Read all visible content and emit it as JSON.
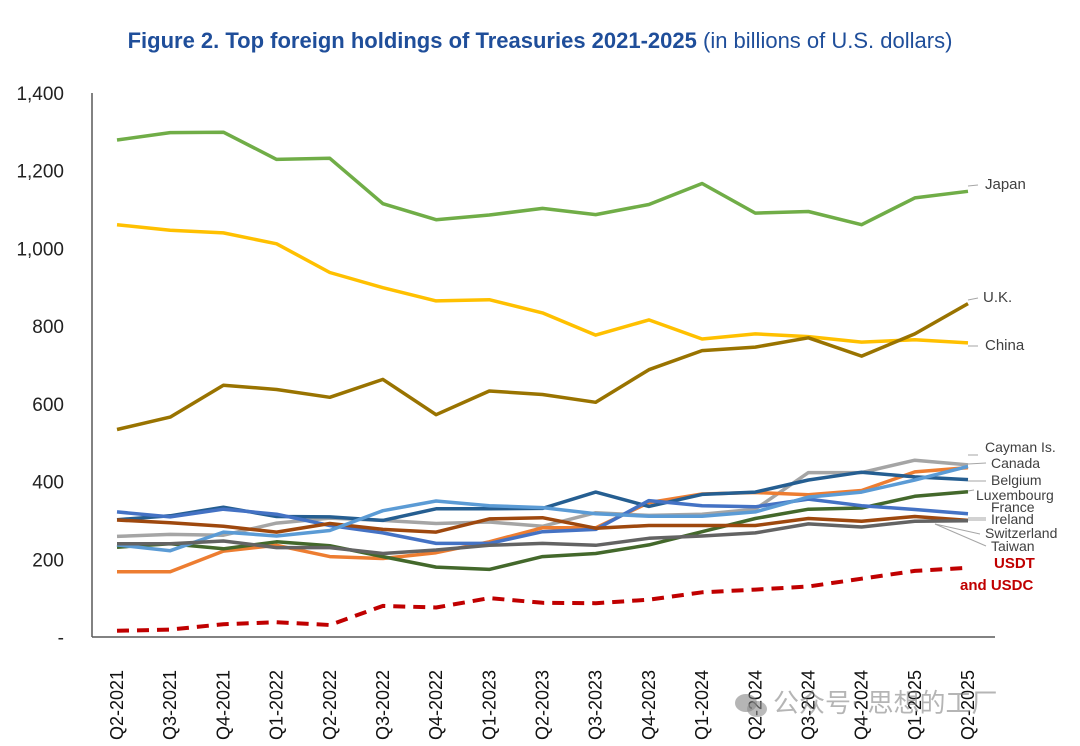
{
  "title": {
    "bold": "Figure 2. Top foreign holdings of Treasuries 2021-2025",
    "light": " (in billions of U.S. dollars)"
  },
  "watermark": {
    "icon": "wechat-icon",
    "text": "公众号· 思想的工厂"
  },
  "chart_data": {
    "type": "line",
    "title": "Figure 2. Top foreign holdings of Treasuries 2021-2025 (in billions of U.S. dollars)",
    "xlabel": "",
    "ylabel": "",
    "ylim": [
      0,
      1400
    ],
    "yticks": [
      0,
      200,
      400,
      600,
      800,
      1000,
      1200,
      1400
    ],
    "ytick_labels": [
      "-",
      "200",
      "400",
      "600",
      "800",
      "1,000",
      "1,200",
      "1,400"
    ],
    "grid": false,
    "legend": "right (direct labels)",
    "categories": [
      "Q2-2021",
      "Q3-2021",
      "Q4-2021",
      "Q1-2022",
      "Q2-2022",
      "Q3-2022",
      "Q4-2022",
      "Q1-2023",
      "Q2-2023",
      "Q3-2023",
      "Q4-2023",
      "Q1-2024",
      "Q2-2024",
      "Q3-2024",
      "Q4-2024",
      "Q1-2025",
      "Q2-2025"
    ],
    "series": [
      {
        "name": "Japan",
        "color": "#70ad47",
        "dashed": false,
        "values": [
          1279,
          1298,
          1299,
          1229,
          1232,
          1115,
          1074,
          1086,
          1103,
          1087,
          1113,
          1167,
          1091,
          1095,
          1061,
          1130,
          1147
        ]
      },
      {
        "name": "China",
        "color": "#ffc000",
        "dashed": false,
        "values": [
          1061,
          1047,
          1040,
          1012,
          938,
          899,
          865,
          868,
          834,
          777,
          816,
          767,
          780,
          773,
          759,
          765,
          757
        ]
      },
      {
        "name": "U.K.",
        "color": "#997300",
        "dashed": false,
        "values": [
          534,
          566,
          648,
          637,
          617,
          663,
          572,
          633,
          624,
          604,
          688,
          737,
          746,
          770,
          723,
          780,
          858
        ]
      },
      {
        "name": "Cayman Is.",
        "color": "#a5a5a5",
        "dashed": false,
        "values": [
          259,
          264,
          262,
          293,
          306,
          300,
          292,
          296,
          285,
          320,
          313,
          316,
          329,
          423,
          423,
          455,
          443
        ]
      },
      {
        "name": "Canada",
        "color": "#ed7d31",
        "dashed": false,
        "values": [
          168,
          168,
          221,
          236,
          207,
          202,
          217,
          245,
          281,
          281,
          346,
          368,
          372,
          366,
          377,
          425,
          436
        ]
      },
      {
        "name": "Belgium",
        "color": "#255e91",
        "dashed": false,
        "values": [
          302,
          312,
          334,
          310,
          309,
          300,
          330,
          330,
          331,
          373,
          336,
          367,
          373,
          404,
          424,
          412,
          405
        ]
      },
      {
        "name": "Luxembourg",
        "color": "#43682b",
        "dashed": false,
        "values": [
          231,
          240,
          227,
          245,
          235,
          207,
          180,
          174,
          207,
          215,
          237,
          271,
          305,
          329,
          332,
          362,
          374
        ]
      },
      {
        "name": "France",
        "color": "#4472c4",
        "dashed": false,
        "values": [
          322,
          309,
          329,
          316,
          287,
          268,
          241,
          241,
          271,
          277,
          351,
          338,
          335,
          355,
          338,
          328,
          317
        ]
      },
      {
        "name": "Ireland",
        "color": "#9e480e",
        "dashed": false,
        "values": [
          301,
          294,
          285,
          270,
          292,
          277,
          270,
          304,
          307,
          280,
          287,
          287,
          287,
          305,
          298,
          310,
          300
        ]
      },
      {
        "name": "Switzerland",
        "color": "#5b9bd5",
        "dashed": false,
        "values": [
          237,
          222,
          270,
          260,
          274,
          325,
          350,
          338,
          333,
          317,
          311,
          311,
          322,
          360,
          373,
          404,
          439
        ]
      },
      {
        "name": "Taiwan",
        "color": "#636363",
        "dashed": false,
        "values": [
          240,
          240,
          247,
          230,
          230,
          215,
          224,
          236,
          241,
          236,
          254,
          260,
          268,
          291,
          283,
          298,
          299
        ]
      },
      {
        "name": "USDT and USDC",
        "color": "#c00000",
        "dashed": true,
        "values": [
          16,
          19,
          33,
          38,
          31,
          80,
          76,
          100,
          88,
          87,
          96,
          115,
          122,
          130,
          150,
          170,
          178
        ]
      }
    ],
    "labels": [
      {
        "series": "Japan",
        "text": "Japan"
      },
      {
        "series": "U.K.",
        "text": "U.K."
      },
      {
        "series": "China",
        "text": "China"
      },
      {
        "series": "Cayman Is.",
        "text": "Cayman Is."
      },
      {
        "series": "Canada",
        "text": "Canada"
      },
      {
        "series": "Belgium",
        "text": "Belgium"
      },
      {
        "series": "Luxembourg",
        "text": "Luxembourg"
      },
      {
        "series": "France",
        "text": "France"
      },
      {
        "series": "Ireland",
        "text": "Ireland"
      },
      {
        "series": "Switzerland",
        "text": "Switzerland"
      },
      {
        "series": "Taiwan",
        "text": "Taiwan"
      },
      {
        "series": "USDT and USDC",
        "text": "USDT"
      },
      {
        "series": "USDT and USDC",
        "text": "and USDC"
      }
    ]
  }
}
